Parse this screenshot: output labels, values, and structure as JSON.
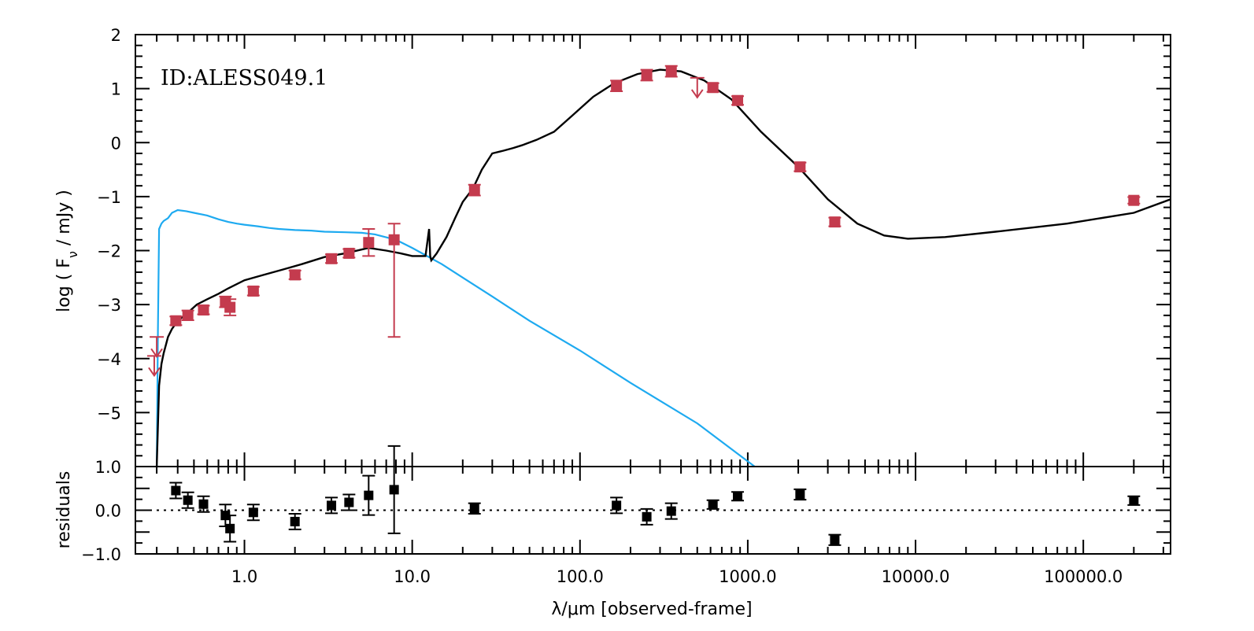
{
  "chart_data": {
    "type": "scatter",
    "annotation": "ID:ALESS049.1",
    "xlabel": "λ/μm  [observed-frame]",
    "ylabel_main": "log ( F_ν / mJy )",
    "ylabel_residual": "residuals",
    "x_scale": "log",
    "xlim_log10": [
      -0.65,
      5.52
    ],
    "x_tick_labels": [
      "1.0",
      "10.0",
      "100.0",
      "1000.0",
      "10000.0",
      "100000.0"
    ],
    "x_tick_values": [
      1,
      10,
      100,
      1000,
      10000,
      100000
    ],
    "ylim_main": [
      -6,
      2
    ],
    "y_tick_labels_main": [
      "2",
      "1",
      "0",
      "−1",
      "−2",
      "−3",
      "−4",
      "−5"
    ],
    "y_tick_values_main": [
      2,
      1,
      0,
      -1,
      -2,
      -3,
      -4,
      -5
    ],
    "ylim_residual": [
      -1,
      1
    ],
    "y_tick_labels_residual": [
      "1.0",
      "0.0",
      "−1.0"
    ],
    "y_tick_values_residual": [
      1,
      0,
      -1
    ],
    "colors": {
      "points": "#c43b4e",
      "model_total": "#000000",
      "stellar_unattenuated": "#1eaaf0",
      "residual_points": "#000000"
    },
    "series": [
      {
        "kind": "photometry",
        "points": [
          {
            "x": 0.39,
            "y": -3.3,
            "err": 0.08
          },
          {
            "x": 0.46,
            "y": -3.2,
            "err": 0.09
          },
          {
            "x": 0.57,
            "y": -3.1,
            "err": 0.08
          },
          {
            "x": 0.77,
            "y": -2.95,
            "err": 0.1
          },
          {
            "x": 0.82,
            "y": -3.05,
            "err": 0.15
          },
          {
            "x": 1.13,
            "y": -2.75,
            "err": 0.08
          },
          {
            "x": 2.0,
            "y": -2.45,
            "err": 0.08
          },
          {
            "x": 3.3,
            "y": -2.15,
            "err": 0.08
          },
          {
            "x": 4.2,
            "y": -2.05,
            "err": 0.08
          },
          {
            "x": 5.5,
            "y": -1.85,
            "err": 0.25
          },
          {
            "x": 7.8,
            "y": -1.8,
            "err_up": 0.3,
            "err_down": 1.8
          },
          {
            "x": 23.5,
            "y": -0.88,
            "err": 0.1
          },
          {
            "x": 165,
            "y": 1.05,
            "err": 0.1
          },
          {
            "x": 250,
            "y": 1.25,
            "err": 0.1
          },
          {
            "x": 350,
            "y": 1.32,
            "err": 0.1
          },
          {
            "x": 620,
            "y": 1.02,
            "err": 0.08
          },
          {
            "x": 870,
            "y": 0.78,
            "err": 0.08
          },
          {
            "x": 2050,
            "y": -0.45,
            "err": 0.08
          },
          {
            "x": 3300,
            "y": -1.47,
            "err": 0.08
          },
          {
            "x": 200000,
            "y": -1.07,
            "err": 0.06
          }
        ],
        "upper_limits": [
          {
            "x": 0.3,
            "y": -3.6
          },
          {
            "x": 0.29,
            "y": -3.95
          },
          {
            "x": 500,
            "y": 1.2
          }
        ]
      },
      {
        "kind": "model_total",
        "x": [
          0.3,
          0.31,
          0.32,
          0.33,
          0.34,
          0.35,
          0.37,
          0.39,
          0.42,
          0.46,
          0.52,
          0.6,
          0.7,
          0.8,
          1.0,
          1.3,
          1.7,
          2.2,
          3.0,
          4.0,
          5.5,
          7.0,
          8.5,
          10.0,
          12.0,
          12.6,
          12.8,
          13.0,
          14.0,
          16.0,
          18.0,
          20.0,
          23.0,
          26.0,
          30.0,
          35.0,
          40.0,
          45.0,
          55.0,
          70.0,
          90.0,
          120.0,
          160.0,
          220.0,
          300.0,
          400.0,
          550.0,
          800.0,
          1200.0,
          2000.0,
          3000.0,
          4500.0,
          6500.0,
          9000.0,
          15000.0,
          30000.0,
          80000.0,
          200000.0,
          331131.0
        ],
        "y": [
          -6.0,
          -4.5,
          -4.1,
          -3.9,
          -3.75,
          -3.6,
          -3.45,
          -3.35,
          -3.25,
          -3.15,
          -3.0,
          -2.9,
          -2.8,
          -2.7,
          -2.55,
          -2.45,
          -2.35,
          -2.25,
          -2.12,
          -2.05,
          -1.95,
          -2.0,
          -2.05,
          -2.1,
          -2.1,
          -1.6,
          -2.1,
          -2.18,
          -2.05,
          -1.75,
          -1.4,
          -1.1,
          -0.85,
          -0.5,
          -0.2,
          -0.15,
          -0.1,
          -0.05,
          0.05,
          0.2,
          0.5,
          0.85,
          1.1,
          1.27,
          1.35,
          1.32,
          1.15,
          0.8,
          0.2,
          -0.45,
          -1.05,
          -1.5,
          -1.72,
          -1.78,
          -1.75,
          -1.65,
          -1.5,
          -1.3,
          -1.05
        ]
      },
      {
        "kind": "stellar_unattenuated",
        "x": [
          0.3,
          0.305,
          0.31,
          0.32,
          0.33,
          0.35,
          0.37,
          0.4,
          0.45,
          0.5,
          0.6,
          0.7,
          0.8,
          0.9,
          1.0,
          1.2,
          1.4,
          1.6,
          2.0,
          2.5,
          3.0,
          4.0,
          5.0,
          6.0,
          8.0,
          10.0,
          15.0,
          20.0,
          30.0,
          50.0,
          100.0,
          200.0,
          500.0,
          1100.0
        ],
        "y": [
          -6.0,
          -3.5,
          -1.6,
          -1.5,
          -1.45,
          -1.4,
          -1.3,
          -1.25,
          -1.27,
          -1.3,
          -1.35,
          -1.42,
          -1.47,
          -1.5,
          -1.52,
          -1.55,
          -1.58,
          -1.6,
          -1.62,
          -1.63,
          -1.65,
          -1.66,
          -1.67,
          -1.7,
          -1.8,
          -1.95,
          -2.25,
          -2.5,
          -2.85,
          -3.3,
          -3.85,
          -4.45,
          -5.2,
          -6.0
        ]
      },
      {
        "kind": "residuals",
        "points": [
          {
            "x": 0.39,
            "y": 0.45,
            "err": 0.18
          },
          {
            "x": 0.46,
            "y": 0.23,
            "err": 0.18
          },
          {
            "x": 0.57,
            "y": 0.14,
            "err": 0.18
          },
          {
            "x": 0.77,
            "y": -0.12,
            "err": 0.25
          },
          {
            "x": 0.82,
            "y": -0.42,
            "err": 0.3
          },
          {
            "x": 1.13,
            "y": -0.05,
            "err": 0.18
          },
          {
            "x": 2.0,
            "y": -0.26,
            "err": 0.18
          },
          {
            "x": 3.3,
            "y": 0.11,
            "err": 0.18
          },
          {
            "x": 4.2,
            "y": 0.18,
            "err": 0.18
          },
          {
            "x": 5.5,
            "y": 0.34,
            "err": 0.45
          },
          {
            "x": 7.8,
            "y": 0.47,
            "err": 1.0
          },
          {
            "x": 23.5,
            "y": 0.04,
            "err": 0.12
          },
          {
            "x": 165,
            "y": 0.11,
            "err": 0.18
          },
          {
            "x": 250,
            "y": -0.15,
            "err": 0.18
          },
          {
            "x": 350,
            "y": -0.02,
            "err": 0.18
          },
          {
            "x": 620,
            "y": 0.13,
            "err": 0.1
          },
          {
            "x": 870,
            "y": 0.32,
            "err": 0.1
          },
          {
            "x": 2050,
            "y": 0.36,
            "err": 0.12
          },
          {
            "x": 3300,
            "y": -0.68,
            "err": 0.12
          },
          {
            "x": 200000,
            "y": 0.22,
            "err": 0.1
          }
        ]
      }
    ]
  }
}
